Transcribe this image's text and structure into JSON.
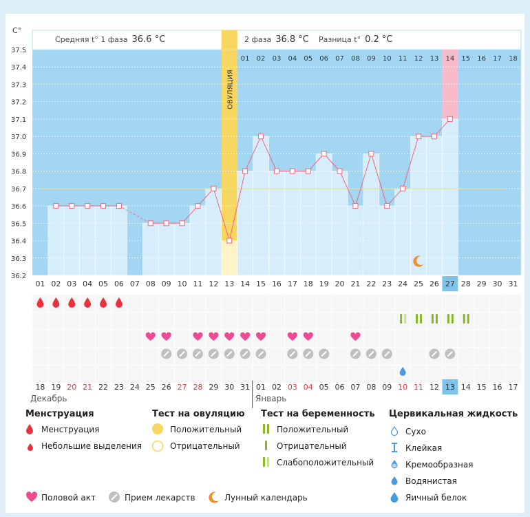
{
  "chart_data": {
    "type": "line",
    "title": "",
    "ylabel": "C°",
    "ylim": [
      36.2,
      37.5
    ],
    "y_ticks": [
      "37.5",
      "37.4",
      "37.3",
      "37.2",
      "37.1",
      "37.0",
      "36.9",
      "36.8",
      "36.7",
      "36.6",
      "36.5",
      "36.4",
      "36.3",
      "36.2"
    ],
    "coverline": 36.7,
    "ovulation_day": 13,
    "current_day": 27,
    "cycle_days": [
      "01",
      "02",
      "03",
      "04",
      "05",
      "06",
      "07",
      "08",
      "09",
      "10",
      "11",
      "12",
      "13",
      "14",
      "15",
      "16",
      "17",
      "18",
      "19",
      "20",
      "21",
      "22",
      "23",
      "24",
      "25",
      "26",
      "27",
      "28",
      "29",
      "30",
      "31"
    ],
    "temperatures": [
      null,
      36.6,
      36.6,
      36.6,
      36.6,
      36.6,
      null,
      36.5,
      36.5,
      36.5,
      36.6,
      36.7,
      36.4,
      36.8,
      37.0,
      36.8,
      36.8,
      36.8,
      36.9,
      36.8,
      36.6,
      36.9,
      36.6,
      36.7,
      37.0,
      37.0,
      37.1,
      null,
      null,
      null,
      null
    ],
    "luteal_days": [
      "01",
      "02",
      "03",
      "04",
      "05",
      "06",
      "07",
      "08",
      "09",
      "10",
      "11",
      "12",
      "13",
      "14",
      "15",
      "16",
      "17",
      "18"
    ],
    "luteal_highlight": "14",
    "dates": [
      "18",
      "19",
      "20",
      "21",
      "22",
      "23",
      "24",
      "25",
      "26",
      "27",
      "28",
      "29",
      "30",
      "31",
      "01",
      "02",
      "03",
      "04",
      "05",
      "06",
      "07",
      "08",
      "09",
      "10",
      "11",
      "12",
      "13",
      "14",
      "15",
      "16",
      "17"
    ],
    "dates_red": [
      3,
      4,
      10,
      11,
      17,
      18,
      24,
      25
    ],
    "months": [
      "Декабрь",
      "Январь"
    ],
    "menstruation_days": [
      1,
      2,
      3,
      4,
      5,
      6
    ],
    "intercourse_days": [
      8,
      9,
      11,
      12,
      13,
      14,
      15,
      17,
      18,
      21
    ],
    "medication_days": [
      9,
      10,
      11,
      12,
      13,
      14,
      15,
      17,
      18,
      19,
      21,
      22,
      23,
      26,
      27
    ],
    "pregnancy_test_days": [
      {
        "day": 24,
        "result": "weak"
      },
      {
        "day": 25,
        "result": "positive"
      },
      {
        "day": 26,
        "result": "positive"
      },
      {
        "day": 27,
        "result": "positive"
      },
      {
        "day": 28,
        "result": "positive"
      }
    ],
    "cervical_fluid_days": [
      {
        "day": 24,
        "type": "creamy"
      }
    ],
    "moon_days": [
      25
    ]
  },
  "header": {
    "phase1_label": "Средняя t° 1 фаза",
    "phase1_value": "36.6 °C",
    "phase2_label": "2 фаза",
    "phase2_value": "36.8 °C",
    "diff_label": "Разница t°",
    "diff_value": "0.2 °C",
    "ovulation_label": "ОВУЛЯЦИЯ"
  },
  "legend": {
    "menstruation": {
      "title": "Менструация",
      "items": [
        "Менструация",
        "Небольшие выделения"
      ]
    },
    "ovulation_test": {
      "title": "Тест на овуляцию",
      "items": [
        "Положительный",
        "Отрицательный"
      ]
    },
    "pregnancy_test": {
      "title": "Тест на беременность",
      "items": [
        "Положительный",
        "Отрицательный",
        "Слабоположительный"
      ]
    },
    "cervical_fluid": {
      "title": "Цервикальная жидкость",
      "items": [
        "Сухо",
        "Клейкая",
        "Кремообразная",
        "Водянистая",
        "Яичный белок"
      ]
    },
    "bottom": [
      "Половой акт",
      "Прием лекарств",
      "Лунный календарь"
    ]
  },
  "colors": {
    "background": "#ddeef8",
    "plot_bg": "#a3d6f3",
    "bar_fill": "#d6eefb",
    "line": "#f3637c",
    "ovulation": "#f8d760",
    "highlight_pink": "#f6bccb",
    "heart": "#ef4b93",
    "drop": "#e8333f",
    "pill": "#bfbfbf",
    "test_green": "#8ab626",
    "test_light": "#c9e08a",
    "moon": "#ef8f2c",
    "coverline": "#ede27e"
  }
}
